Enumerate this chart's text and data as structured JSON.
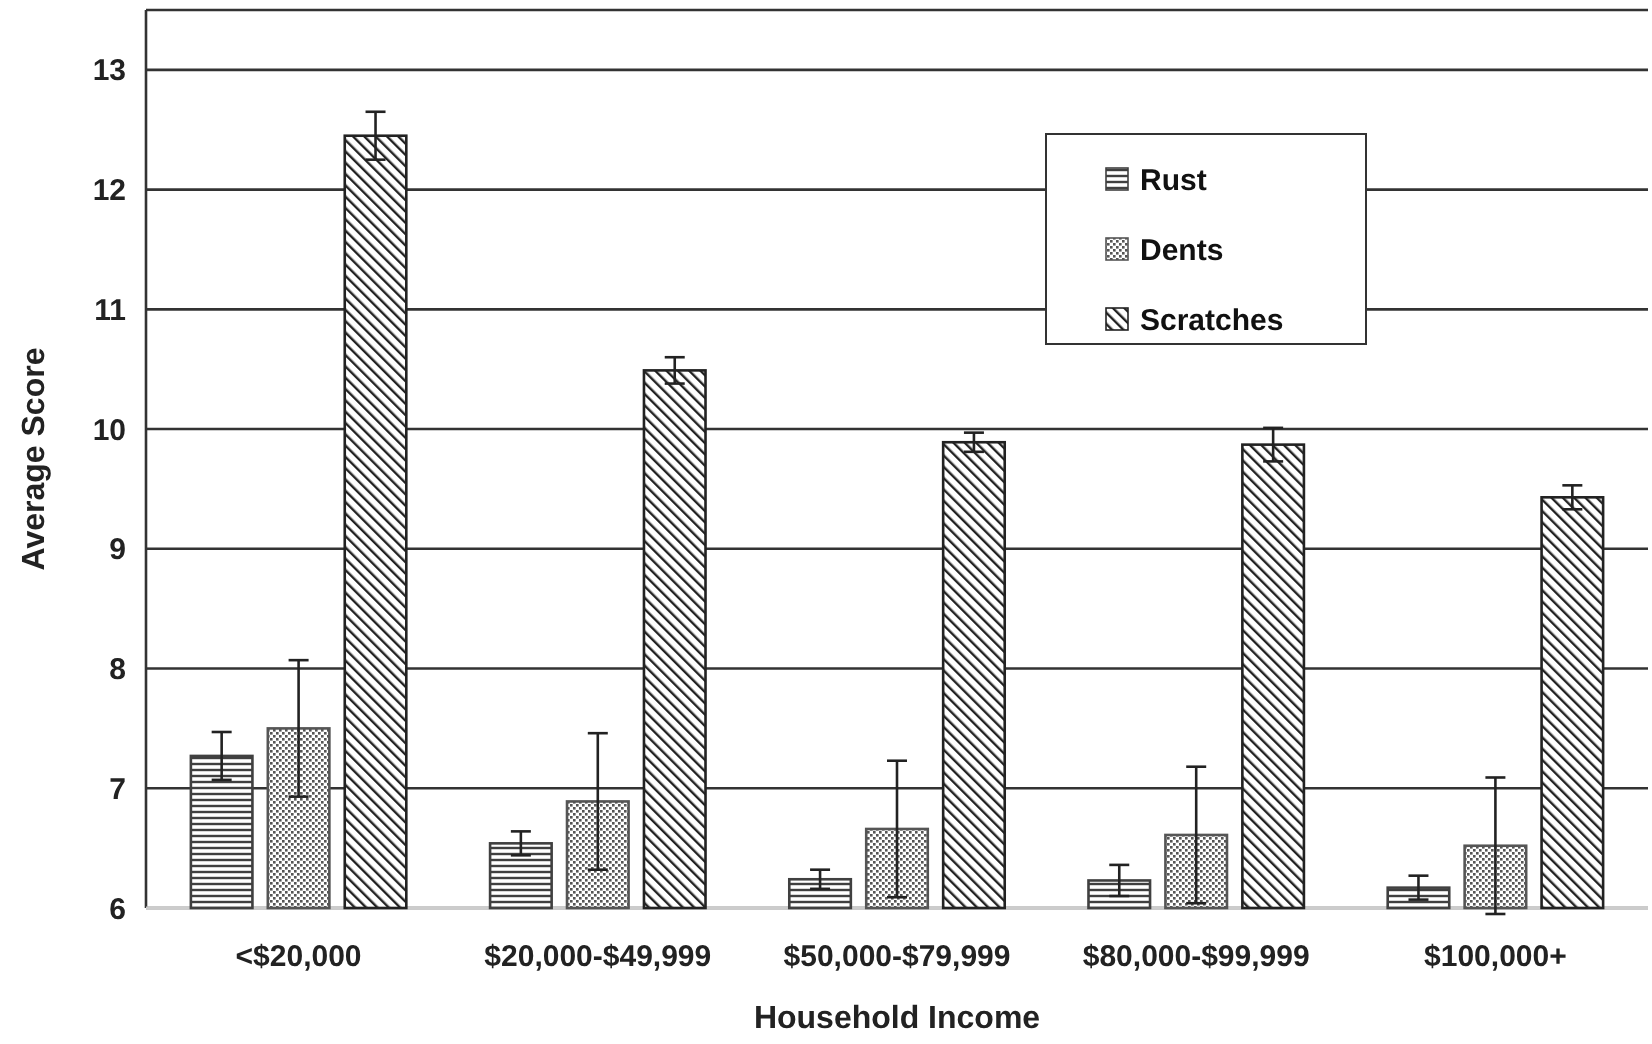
{
  "chart_data": {
    "type": "bar",
    "xlabel": "Household Income",
    "ylabel": "Average Score",
    "categories": [
      "<$20,000",
      "$20,000-$49,999",
      "$50,000-$79,999",
      "$80,000-$99,999",
      "$100,000+"
    ],
    "series": [
      {
        "name": "Rust",
        "color": "#404040",
        "values": [
          7.27,
          6.54,
          6.24,
          6.23,
          6.17
        ],
        "errors": [
          0.2,
          0.1,
          0.08,
          0.13,
          0.1
        ]
      },
      {
        "name": "Dents",
        "color": "#555555",
        "values": [
          7.5,
          6.89,
          6.66,
          6.61,
          6.52
        ],
        "errors": [
          0.57,
          0.57,
          0.57,
          0.57,
          0.57
        ]
      },
      {
        "name": "Scratches",
        "color": "#222222",
        "values": [
          12.45,
          10.49,
          9.89,
          9.87,
          9.43
        ],
        "errors": [
          0.2,
          0.11,
          0.08,
          0.14,
          0.1
        ]
      }
    ],
    "ylim": [
      6,
      13.5
    ],
    "yticks": [
      6,
      7,
      8,
      9,
      10,
      11,
      12,
      13
    ],
    "grid": "y",
    "legend": "top right"
  }
}
